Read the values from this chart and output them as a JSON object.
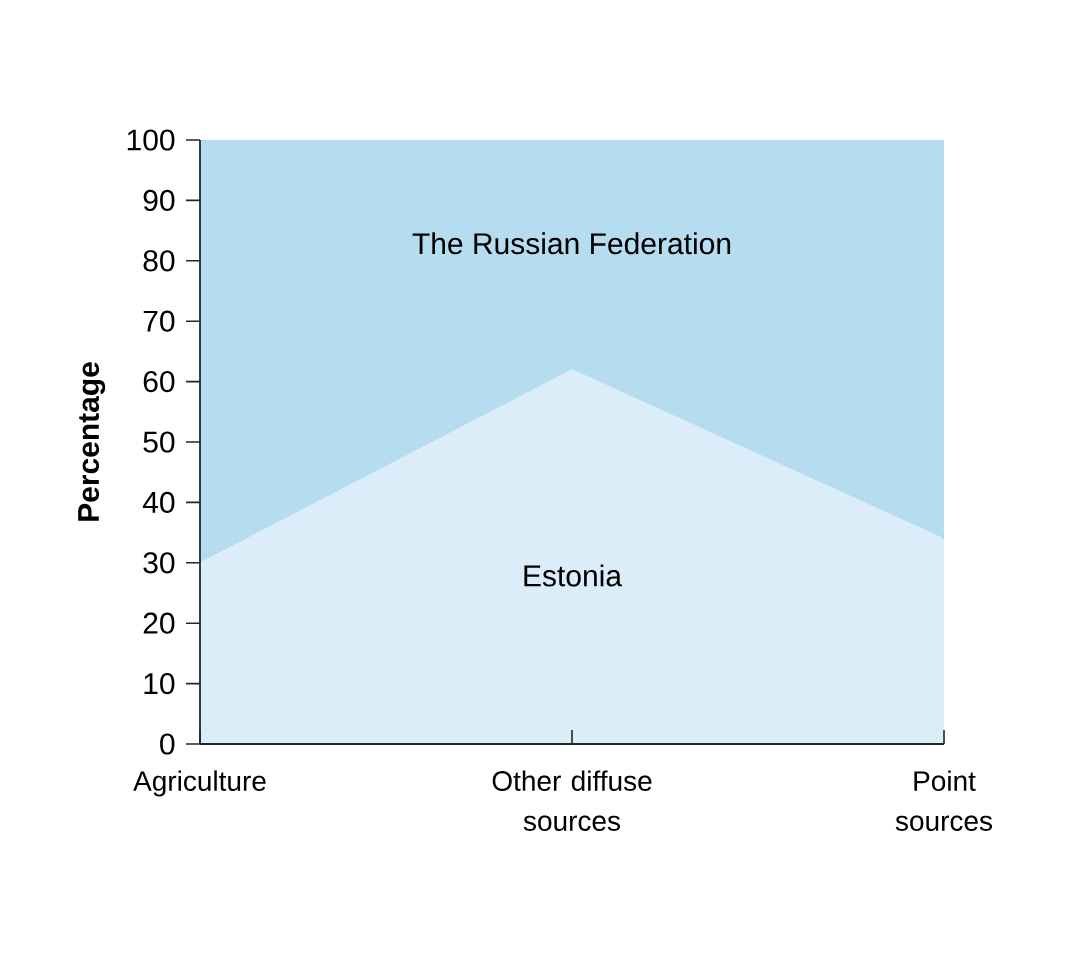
{
  "chart_data": {
    "type": "area",
    "stacked": true,
    "ylabel": "Percentage",
    "categories": [
      "Agriculture",
      "Other diffuse sources",
      "Point sources"
    ],
    "series": [
      {
        "name": "Estonia",
        "color": "#dbedf8",
        "values": [
          30,
          62,
          34
        ]
      },
      {
        "name": "The Russian Federation",
        "color": "#b6ddef",
        "values": [
          70,
          38,
          66
        ]
      }
    ],
    "ylim": [
      0,
      100
    ],
    "yticks": [
      0,
      10,
      20,
      30,
      40,
      50,
      60,
      70,
      80,
      90,
      100
    ]
  }
}
